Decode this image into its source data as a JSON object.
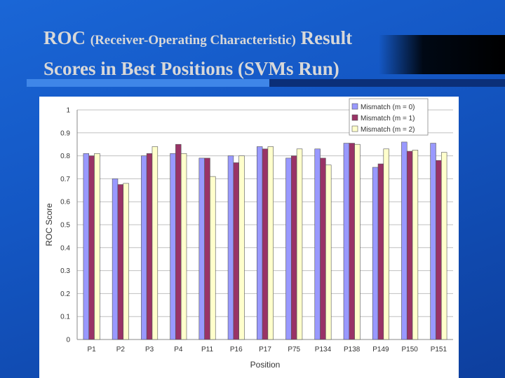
{
  "slide": {
    "title_part1": "ROC",
    "title_part2": "(Receiver-Operating Characteristic)",
    "title_part3": "Result",
    "title_line2": "Scores in Best Positions (SVMs Run)"
  },
  "chart_data": {
    "type": "bar",
    "categories": [
      "P1",
      "P2",
      "P3",
      "P4",
      "P11",
      "P16",
      "P17",
      "P75",
      "P134",
      "P138",
      "P149",
      "P150",
      "P151"
    ],
    "series": [
      {
        "name": "Mismatch (m = 0)",
        "color": "#9999ff",
        "values": [
          0.81,
          0.7,
          0.8,
          0.81,
          0.79,
          0.8,
          0.84,
          0.79,
          0.83,
          0.855,
          0.75,
          0.86,
          0.855
        ]
      },
      {
        "name": "Mismatch (m = 1)",
        "color": "#993366",
        "values": [
          0.8,
          0.675,
          0.81,
          0.85,
          0.79,
          0.77,
          0.83,
          0.8,
          0.79,
          0.855,
          0.765,
          0.82,
          0.78
        ]
      },
      {
        "name": "Mismatch (m = 2)",
        "color": "#ffffcc",
        "values": [
          0.81,
          0.68,
          0.84,
          0.81,
          0.71,
          0.8,
          0.84,
          0.83,
          0.76,
          0.85,
          0.83,
          0.825,
          0.815
        ]
      }
    ],
    "xlabel": "Position",
    "ylabel": "ROC Score",
    "ylim": [
      0,
      1
    ],
    "yticks": [
      "0",
      "0.1",
      "0.2",
      "0.3",
      "0.4",
      "0.5",
      "0.6",
      "0.7",
      "0.8",
      "0.9",
      "1"
    ],
    "grid": true,
    "legend": "top-right"
  }
}
